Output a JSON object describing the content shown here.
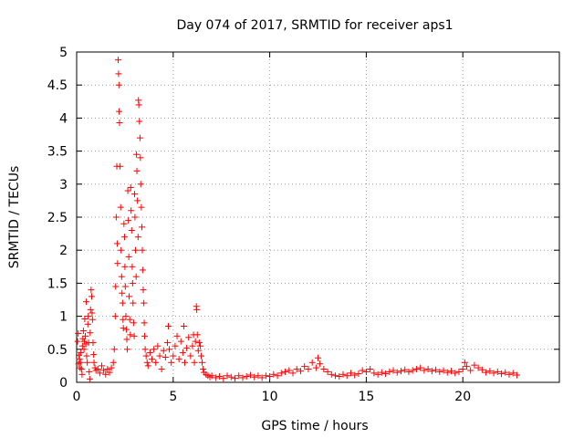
{
  "chart_data": {
    "type": "scatter",
    "title": "Day 074 of 2017, SRMTID for receiver aps1",
    "xlabel": "GPS time / hours",
    "ylabel": "SRMTID / TECUs",
    "xlim": [
      0,
      25
    ],
    "ylim": [
      0,
      5
    ],
    "x_ticks": [
      0,
      5,
      10,
      15,
      20
    ],
    "x_tick_labels": [
      "0",
      "5",
      "10",
      "15",
      "20"
    ],
    "y_ticks": [
      0,
      0.5,
      1,
      1.5,
      2,
      2.5,
      3,
      3.5,
      4,
      4.5,
      5
    ],
    "y_tick_labels": [
      "0",
      "0.5",
      "1",
      "1.5",
      "2",
      "2.5",
      "3",
      "3.5",
      "4",
      "4.5",
      "5"
    ],
    "grid": true,
    "marker": "+",
    "series_color": "#ff0000",
    "series": [
      {
        "name": "aps1",
        "points": [
          [
            0.05,
            0.62
          ],
          [
            0.08,
            0.74
          ],
          [
            0.1,
            0.28
          ],
          [
            0.12,
            0.41
          ],
          [
            0.15,
            0.35
          ],
          [
            0.18,
            0.22
          ],
          [
            0.2,
            0.3
          ],
          [
            0.22,
            0.45
          ],
          [
            0.25,
            0.2
          ],
          [
            0.28,
            0.12
          ],
          [
            0.3,
            0.55
          ],
          [
            0.32,
            0.66
          ],
          [
            0.35,
            0.78
          ],
          [
            0.38,
            0.5
          ],
          [
            0.4,
            0.62
          ],
          [
            0.42,
            0.96
          ],
          [
            0.45,
            0.7
          ],
          [
            0.48,
            0.58
          ],
          [
            0.5,
            1.22
          ],
          [
            0.52,
            0.4
          ],
          [
            0.55,
            0.3
          ],
          [
            0.58,
            0.88
          ],
          [
            0.6,
            1.0
          ],
          [
            0.62,
            0.6
          ],
          [
            0.65,
            0.16
          ],
          [
            0.68,
            0.05
          ],
          [
            0.7,
            0.75
          ],
          [
            0.72,
            1.1
          ],
          [
            0.75,
            1.4
          ],
          [
            0.78,
            1.3
          ],
          [
            0.8,
            1.05
          ],
          [
            0.82,
            0.95
          ],
          [
            0.85,
            0.6
          ],
          [
            0.88,
            0.42
          ],
          [
            0.9,
            0.3
          ],
          [
            0.95,
            0.22
          ],
          [
            1.0,
            0.18
          ],
          [
            1.1,
            0.2
          ],
          [
            1.2,
            0.14
          ],
          [
            1.3,
            0.25
          ],
          [
            1.4,
            0.18
          ],
          [
            1.5,
            0.12
          ],
          [
            1.6,
            0.2
          ],
          [
            1.7,
            0.15
          ],
          [
            1.8,
            0.22
          ],
          [
            1.9,
            0.3
          ],
          [
            1.95,
            0.5
          ],
          [
            2.0,
            1.0
          ],
          [
            2.02,
            1.45
          ],
          [
            2.05,
            2.5
          ],
          [
            2.08,
            3.27
          ],
          [
            2.1,
            2.1
          ],
          [
            2.12,
            1.8
          ],
          [
            2.15,
            4.88
          ],
          [
            2.17,
            4.67
          ],
          [
            2.19,
            4.5
          ],
          [
            2.2,
            4.1
          ],
          [
            2.22,
            3.93
          ],
          [
            2.25,
            3.27
          ],
          [
            2.28,
            2.65
          ],
          [
            2.3,
            2.0
          ],
          [
            2.33,
            1.6
          ],
          [
            2.35,
            1.35
          ],
          [
            2.38,
            1.2
          ],
          [
            2.4,
            0.95
          ],
          [
            2.42,
            0.82
          ],
          [
            2.45,
            2.4
          ],
          [
            2.48,
            2.2
          ],
          [
            2.5,
            1.75
          ],
          [
            2.52,
            1.45
          ],
          [
            2.55,
            1.0
          ],
          [
            2.58,
            0.8
          ],
          [
            2.6,
            0.65
          ],
          [
            2.62,
            0.5
          ],
          [
            2.65,
            2.9
          ],
          [
            2.68,
            2.45
          ],
          [
            2.7,
            1.9
          ],
          [
            2.72,
            1.3
          ],
          [
            2.75,
            0.95
          ],
          [
            2.78,
            0.72
          ],
          [
            2.8,
            2.95
          ],
          [
            2.82,
            2.6
          ],
          [
            2.85,
            2.3
          ],
          [
            2.88,
            1.75
          ],
          [
            2.9,
            1.5
          ],
          [
            2.92,
            1.2
          ],
          [
            2.95,
            0.9
          ],
          [
            2.98,
            0.7
          ],
          [
            3.0,
            2.85
          ],
          [
            3.02,
            2.5
          ],
          [
            3.05,
            2.0
          ],
          [
            3.08,
            1.6
          ],
          [
            3.1,
            3.45
          ],
          [
            3.12,
            3.2
          ],
          [
            3.15,
            2.75
          ],
          [
            3.18,
            2.2
          ],
          [
            3.2,
            4.27
          ],
          [
            3.22,
            4.2
          ],
          [
            3.25,
            3.95
          ],
          [
            3.28,
            3.7
          ],
          [
            3.3,
            3.4
          ],
          [
            3.32,
            3.0
          ],
          [
            3.35,
            2.65
          ],
          [
            3.38,
            2.35
          ],
          [
            3.4,
            2.0
          ],
          [
            3.42,
            1.7
          ],
          [
            3.45,
            1.4
          ],
          [
            3.48,
            1.2
          ],
          [
            3.5,
            0.9
          ],
          [
            3.52,
            0.7
          ],
          [
            3.55,
            0.5
          ],
          [
            3.6,
            0.4
          ],
          [
            3.65,
            0.3
          ],
          [
            3.7,
            0.25
          ],
          [
            3.8,
            0.45
          ],
          [
            3.9,
            0.35
          ],
          [
            4.0,
            0.5
          ],
          [
            4.1,
            0.3
          ],
          [
            4.2,
            0.55
          ],
          [
            4.3,
            0.4
          ],
          [
            4.4,
            0.2
          ],
          [
            4.5,
            0.48
          ],
          [
            4.6,
            0.38
          ],
          [
            4.7,
            0.6
          ],
          [
            4.75,
            0.85
          ],
          [
            4.8,
            0.5
          ],
          [
            4.9,
            0.3
          ],
          [
            5.0,
            0.4
          ],
          [
            5.1,
            0.55
          ],
          [
            5.2,
            0.7
          ],
          [
            5.3,
            0.35
          ],
          [
            5.4,
            0.62
          ],
          [
            5.5,
            0.45
          ],
          [
            5.55,
            0.85
          ],
          [
            5.6,
            0.3
          ],
          [
            5.7,
            0.52
          ],
          [
            5.8,
            0.68
          ],
          [
            5.9,
            0.4
          ],
          [
            6.0,
            0.55
          ],
          [
            6.05,
            0.72
          ],
          [
            6.1,
            0.3
          ],
          [
            6.15,
            0.62
          ],
          [
            6.2,
            1.15
          ],
          [
            6.22,
            1.1
          ],
          [
            6.25,
            0.72
          ],
          [
            6.3,
            0.48
          ],
          [
            6.35,
            0.6
          ],
          [
            6.4,
            0.55
          ],
          [
            6.45,
            0.4
          ],
          [
            6.5,
            0.3
          ],
          [
            6.55,
            0.2
          ],
          [
            6.6,
            0.15
          ],
          [
            6.7,
            0.12
          ],
          [
            6.8,
            0.1
          ],
          [
            6.9,
            0.08
          ],
          [
            7.0,
            0.1
          ],
          [
            7.2,
            0.07
          ],
          [
            7.4,
            0.09
          ],
          [
            7.6,
            0.06
          ],
          [
            7.8,
            0.1
          ],
          [
            8.0,
            0.08
          ],
          [
            8.2,
            0.06
          ],
          [
            8.4,
            0.1
          ],
          [
            8.6,
            0.07
          ],
          [
            8.8,
            0.09
          ],
          [
            9.0,
            0.11
          ],
          [
            9.2,
            0.08
          ],
          [
            9.4,
            0.1
          ],
          [
            9.6,
            0.07
          ],
          [
            9.8,
            0.1
          ],
          [
            10.0,
            0.09
          ],
          [
            10.2,
            0.12
          ],
          [
            10.4,
            0.1
          ],
          [
            10.6,
            0.14
          ],
          [
            10.8,
            0.16
          ],
          [
            11.0,
            0.18
          ],
          [
            11.2,
            0.14
          ],
          [
            11.4,
            0.2
          ],
          [
            11.6,
            0.17
          ],
          [
            11.8,
            0.24
          ],
          [
            12.0,
            0.2
          ],
          [
            12.2,
            0.3
          ],
          [
            12.4,
            0.22
          ],
          [
            12.5,
            0.37
          ],
          [
            12.6,
            0.28
          ],
          [
            12.8,
            0.2
          ],
          [
            13.0,
            0.16
          ],
          [
            13.2,
            0.12
          ],
          [
            13.4,
            0.1
          ],
          [
            13.6,
            0.09
          ],
          [
            13.8,
            0.12
          ],
          [
            14.0,
            0.1
          ],
          [
            14.2,
            0.14
          ],
          [
            14.4,
            0.11
          ],
          [
            14.6,
            0.13
          ],
          [
            14.8,
            0.18
          ],
          [
            15.0,
            0.16
          ],
          [
            15.2,
            0.2
          ],
          [
            15.4,
            0.14
          ],
          [
            15.6,
            0.12
          ],
          [
            15.8,
            0.15
          ],
          [
            16.0,
            0.13
          ],
          [
            16.2,
            0.16
          ],
          [
            16.4,
            0.18
          ],
          [
            16.6,
            0.15
          ],
          [
            16.8,
            0.17
          ],
          [
            17.0,
            0.19
          ],
          [
            17.2,
            0.16
          ],
          [
            17.4,
            0.18
          ],
          [
            17.6,
            0.2
          ],
          [
            17.8,
            0.22
          ],
          [
            18.0,
            0.18
          ],
          [
            18.2,
            0.2
          ],
          [
            18.4,
            0.17
          ],
          [
            18.6,
            0.19
          ],
          [
            18.8,
            0.16
          ],
          [
            19.0,
            0.18
          ],
          [
            19.2,
            0.15
          ],
          [
            19.4,
            0.17
          ],
          [
            19.6,
            0.14
          ],
          [
            19.8,
            0.16
          ],
          [
            20.0,
            0.2
          ],
          [
            20.1,
            0.3
          ],
          [
            20.2,
            0.24
          ],
          [
            20.4,
            0.18
          ],
          [
            20.6,
            0.26
          ],
          [
            20.8,
            0.22
          ],
          [
            21.0,
            0.19
          ],
          [
            21.2,
            0.15
          ],
          [
            21.4,
            0.17
          ],
          [
            21.6,
            0.14
          ],
          [
            21.8,
            0.16
          ],
          [
            22.0,
            0.13
          ],
          [
            22.2,
            0.15
          ],
          [
            22.4,
            0.12
          ],
          [
            22.6,
            0.14
          ],
          [
            22.8,
            0.11
          ]
        ]
      }
    ]
  }
}
